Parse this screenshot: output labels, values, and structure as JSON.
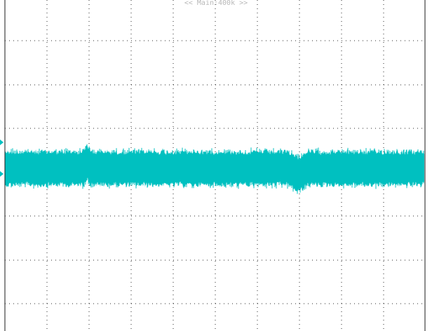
{
  "display": {
    "timebase_label": "<< Main:400k >>"
  },
  "colors": {
    "background": "#ffffff",
    "frame": "#1a1a1a",
    "grid": "#2a2a2a",
    "trace": "#00c0c0",
    "label": "#b9b9b9"
  },
  "icons": {
    "trigger_marker": "triangle-right-icon"
  }
}
